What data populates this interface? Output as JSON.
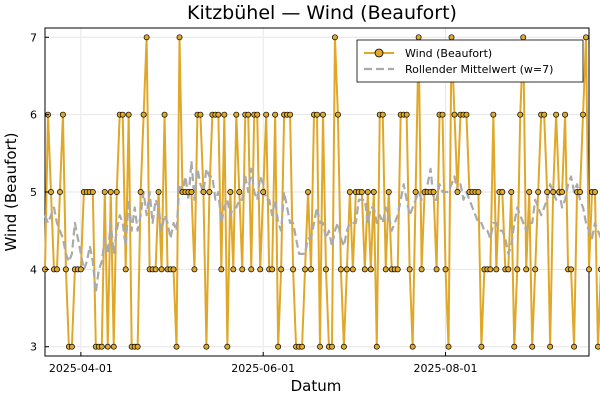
{
  "chart_data": {
    "type": "line",
    "title": "Kitzbühel — Wind (Beaufort)",
    "xlabel": "Datum",
    "ylabel": "Wind (Beaufort)",
    "x_start": "2025-03-20",
    "x_end": "2025-09-18",
    "x_ticks": [
      "2025-04-01",
      "2025-06-01",
      "2025-08-01"
    ],
    "ylim": [
      2.88,
      7.12
    ],
    "y_ticks": [
      3,
      4,
      5,
      6,
      7
    ],
    "grid": true,
    "legend_position": "top-right",
    "series": [
      {
        "name": "Wind (Beaufort)",
        "color": "#e0a82a",
        "marker": "circle",
        "values": [
          4,
          6,
          5,
          4,
          4,
          5,
          6,
          4,
          3,
          3,
          4,
          4,
          4,
          5,
          5,
          5,
          5,
          3,
          3,
          3,
          5,
          3,
          5,
          3,
          5,
          6,
          6,
          4,
          6,
          3,
          3,
          3,
          5,
          6,
          7,
          4,
          4,
          4,
          5,
          4,
          6,
          4,
          4,
          4,
          3,
          7,
          5,
          5,
          5,
          5,
          4,
          6,
          6,
          5,
          3,
          5,
          6,
          6,
          6,
          4,
          6,
          3,
          5,
          4,
          6,
          5,
          4,
          6,
          6,
          4,
          6,
          6,
          4,
          5,
          6,
          4,
          4,
          6,
          3,
          4,
          6,
          6,
          6,
          4,
          3,
          3,
          3,
          4,
          5,
          4,
          6,
          6,
          3,
          6,
          4,
          3,
          3,
          7,
          6,
          4,
          3,
          4,
          5,
          4,
          5,
          5,
          5,
          4,
          5,
          4,
          5,
          3,
          6,
          6,
          4,
          5,
          4,
          4,
          4,
          6,
          6,
          6,
          4,
          3,
          5,
          7,
          4,
          5,
          5,
          5,
          5,
          4,
          6,
          6,
          4,
          3,
          7,
          6,
          5,
          6,
          6,
          6,
          5,
          5,
          5,
          5,
          3,
          4,
          4,
          4,
          6,
          4,
          5,
          5,
          4,
          4,
          5,
          3,
          4,
          6,
          7,
          4,
          5,
          3,
          4,
          5,
          6,
          6,
          5,
          3,
          5,
          6,
          5,
          5,
          6,
          4,
          4,
          3,
          5,
          5,
          6,
          7,
          4,
          5,
          5,
          3,
          4,
          5,
          4,
          4,
          5,
          5,
          4,
          3,
          6,
          6,
          4,
          7,
          3
        ],
        "legend_label": "Wind (Beaufort)"
      },
      {
        "name": "Rollender Mittelwert (w=7)",
        "color": "#aaaaaa",
        "line_style": "dashed",
        "values": [
          4.7,
          4.6,
          4.7,
          4.8,
          4.6,
          4.5,
          4.4,
          4.2,
          4.1,
          4.2,
          4.6,
          4.4,
          4.2,
          4.0,
          4.1,
          4.3,
          4.1,
          3.7,
          4.0,
          4.1,
          4.4,
          4.2,
          4.6,
          4.2,
          4.5,
          4.7,
          4.6,
          4.3,
          4.9,
          4.5,
          4.8,
          4.5,
          4.7,
          5.0,
          4.7,
          5.0,
          4.6,
          4.9,
          4.8,
          4.5,
          4.7,
          4.6,
          4.4,
          4.6,
          4.5,
          5.1,
          5.0,
          5.2,
          4.9,
          5.4,
          4.9,
          5.3,
          5.1,
          5.0,
          5.3,
          5.2,
          5.2,
          4.9,
          5.0,
          4.6,
          4.8,
          4.9,
          4.7,
          4.8,
          4.8,
          4.9,
          4.9,
          5.2,
          5.0,
          5.3,
          5.0,
          4.9,
          5.2,
          5.1,
          4.9,
          4.9,
          4.7,
          4.9,
          4.6,
          4.5,
          5.0,
          4.8,
          4.6,
          4.6,
          4.4,
          4.2,
          4.2,
          4.2,
          4.4,
          4.4,
          4.6,
          4.8,
          4.6,
          4.6,
          4.4,
          4.5,
          4.3,
          4.5,
          4.6,
          4.4,
          4.3,
          4.5,
          4.6,
          4.6,
          4.6,
          4.9,
          4.9,
          4.9,
          4.6,
          4.8,
          4.8,
          4.6,
          4.7,
          4.6,
          4.8,
          4.7,
          4.5,
          4.6,
          4.7,
          4.9,
          5.1,
          4.9,
          4.7,
          4.8,
          4.9,
          5.0,
          4.9,
          5.0,
          5.1,
          5.3,
          4.9,
          4.9,
          5.1,
          5.0,
          5.0,
          5.0,
          5.1,
          5.2,
          5.0,
          5.1,
          4.9,
          5.0,
          4.9,
          4.8,
          4.7,
          4.6,
          4.6,
          4.5,
          4.5,
          4.4,
          4.6,
          4.6,
          4.5,
          4.5,
          4.4,
          4.2,
          4.3,
          4.6,
          4.8,
          4.7,
          4.6,
          4.5,
          4.6,
          4.6,
          4.9,
          4.8,
          4.7,
          4.8,
          4.9,
          5.1,
          5.0,
          4.9,
          5.0,
          4.8,
          4.9,
          5.1,
          5.2,
          5.0,
          5.1,
          4.9,
          4.8,
          4.6,
          4.5,
          4.4,
          4.6,
          4.5,
          4.4,
          4.3,
          4.5,
          4.6,
          4.5,
          4.6,
          4.5
        ],
        "legend_label": "Rollender Mittelwert (w=7)"
      }
    ]
  }
}
